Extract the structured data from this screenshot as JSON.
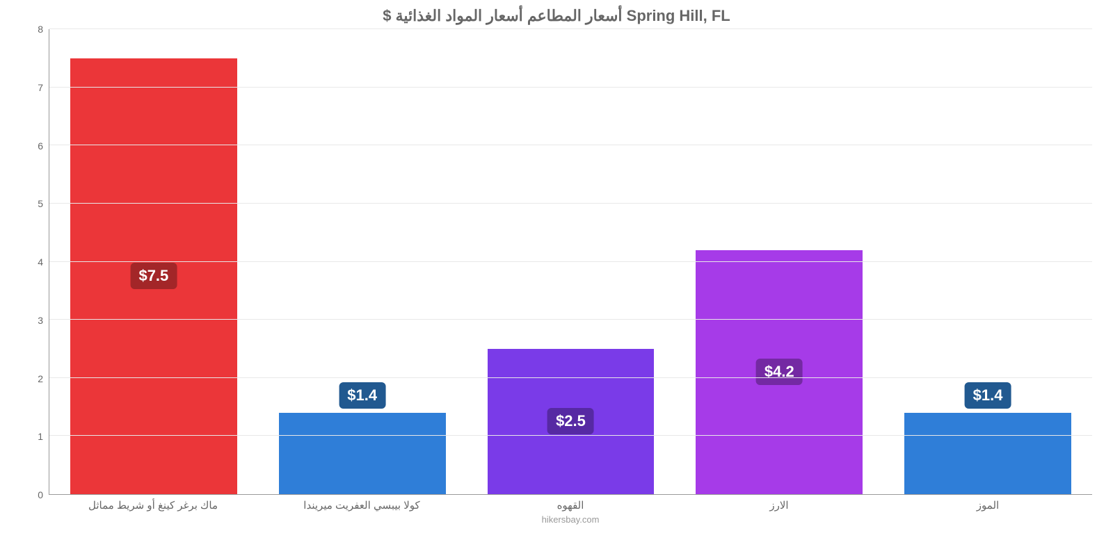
{
  "chart": {
    "type": "bar",
    "title": "$ أسعار المطاعم أسعار المواد الغذائية Spring Hill, FL",
    "title_fontsize": 22,
    "title_color": "#666666",
    "footer": "hikersbay.com",
    "footer_color": "#999999",
    "background": "#ffffff",
    "grid_color": "#e8e8e8",
    "axis_color": "#999999",
    "tick_color": "#666666",
    "ylim_min": 0,
    "ylim_max": 8,
    "ytick_step": 1,
    "bar_width_pct": 16,
    "bar_gap_pct": 4,
    "label_fontsize": 22,
    "label_text_color": "#ffffff",
    "categories": [
      "ماك برغر كينغ أو شريط مماثل",
      "كولا بيبسي العفريت ميريندا",
      "القهوه",
      "الارز",
      "الموز"
    ],
    "values": [
      7.5,
      1.4,
      2.5,
      4.2,
      1.4
    ],
    "value_labels": [
      "$7.5",
      "$1.4",
      "$2.5",
      "$4.2",
      "$1.4"
    ],
    "bar_colors": [
      "#eb3639",
      "#2f7ed8",
      "#7a3be8",
      "#a63be8",
      "#2f7ed8"
    ],
    "label_bg_colors": [
      "#a32628",
      "#215990",
      "#5629a3",
      "#7429a3",
      "#215990"
    ]
  }
}
